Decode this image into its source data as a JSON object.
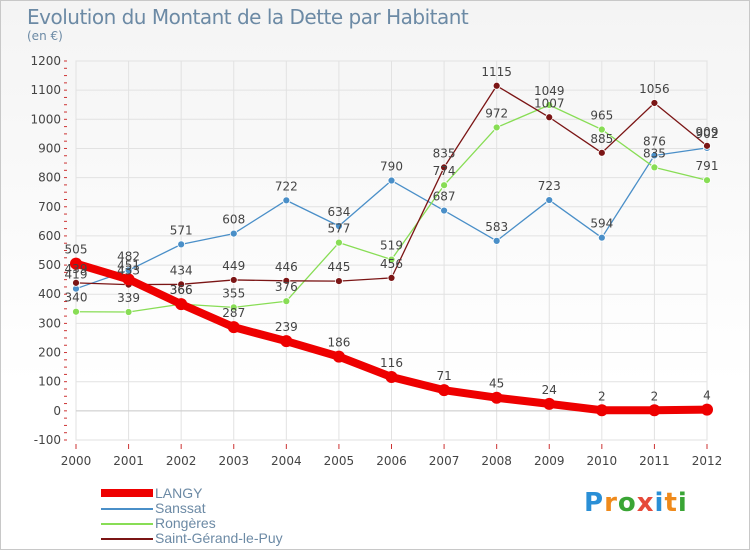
{
  "title": "Evolution du Montant de la Dette par Habitant",
  "subtitle": "(en €)",
  "logo": {
    "text": "Proxiti",
    "letters": [
      "P",
      "r",
      "o",
      "x",
      "i",
      "t",
      "i"
    ],
    "colors": [
      "#2a8fd6",
      "#ef8a1b",
      "#3aa535",
      "#e64a3a",
      "#2a8fd6",
      "#ef8a1b",
      "#3aa535"
    ]
  },
  "chart_data": {
    "type": "line",
    "x": [
      "2000",
      "2001",
      "2002",
      "2003",
      "2004",
      "2005",
      "2006",
      "2007",
      "2008",
      "2009",
      "2010",
      "2011",
      "2012"
    ],
    "ylim": [
      -100,
      1200
    ],
    "y_ticks": [
      "1200",
      "1100",
      "1000",
      "900",
      "800",
      "700",
      "600",
      "500",
      "400",
      "300",
      "200",
      "100",
      "0",
      "-100"
    ],
    "y_tick_values": [
      1200,
      1100,
      1000,
      900,
      800,
      700,
      600,
      500,
      400,
      300,
      200,
      100,
      0,
      -100
    ],
    "grid": true,
    "legend_position": "bottom-left",
    "series": [
      {
        "name": "LANGY",
        "color": "#ee0000",
        "values": [
          505,
          451,
          366,
          287,
          239,
          186,
          116,
          71,
          45,
          24,
          2,
          2,
          4
        ],
        "labels": [
          "505",
          "451",
          "366",
          "287",
          "239",
          "186",
          "116",
          "71",
          "45",
          "24",
          "2",
          "2",
          "4"
        ]
      },
      {
        "name": "Sanssat",
        "color": "#4a8fc8",
        "values": [
          419,
          482,
          571,
          608,
          722,
          634,
          790,
          687,
          583,
          723,
          594,
          876,
          902
        ],
        "labels": [
          "419",
          "482",
          "571",
          "608",
          "722",
          "634",
          "790",
          "687",
          "583",
          "723",
          "594",
          "876",
          "902"
        ]
      },
      {
        "name": "Rongères",
        "color": "#88dd55",
        "values": [
          340,
          339,
          366,
          355,
          376,
          577,
          519,
          774,
          972,
          1049,
          965,
          835,
          791
        ],
        "labels": [
          "340",
          "339",
          "366",
          "355",
          "376",
          "577",
          "519",
          "774",
          "972",
          "1049",
          "965",
          "835",
          "791"
        ]
      },
      {
        "name": "Saint-Gérand-le-Puy",
        "color": "#7b1515",
        "values": [
          439,
          433,
          434,
          449,
          446,
          445,
          456,
          835,
          1115,
          1007,
          885,
          1056,
          909
        ],
        "labels": [
          "439",
          "433",
          "434",
          "449",
          "446",
          "445",
          "456",
          "835",
          "1115",
          "1007",
          "885",
          "1056",
          "909"
        ]
      }
    ]
  }
}
